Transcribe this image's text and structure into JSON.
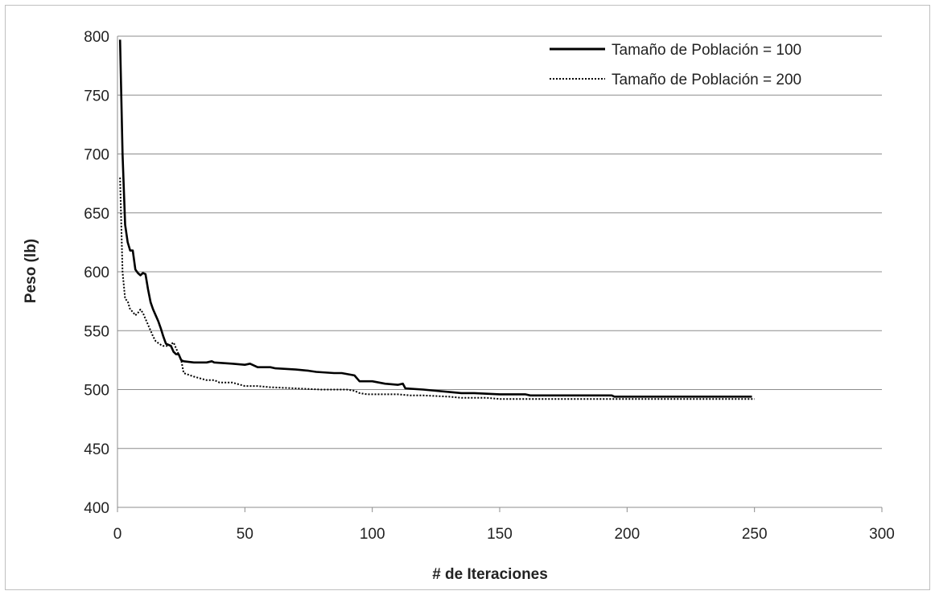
{
  "chart_data": {
    "type": "line",
    "xlabel": "# de Iteraciones",
    "ylabel": "Peso (lb)",
    "xlim": [
      0,
      300
    ],
    "ylim": [
      400,
      800
    ],
    "x_ticks": [
      0,
      50,
      100,
      150,
      200,
      250,
      300
    ],
    "y_ticks": [
      400,
      450,
      500,
      550,
      600,
      650,
      700,
      750,
      800
    ],
    "grid": "horizontal",
    "legend_position": "top-right",
    "colors": {
      "line": "#000000",
      "grid": "#8c8c8c",
      "axis": "#8c8c8c"
    },
    "series": [
      {
        "name": "Tamaño de Población = 100",
        "style": "solid",
        "points": [
          [
            1,
            797
          ],
          [
            2,
            700
          ],
          [
            3,
            640
          ],
          [
            4,
            625
          ],
          [
            5,
            618
          ],
          [
            6,
            618
          ],
          [
            7,
            602
          ],
          [
            8,
            599
          ],
          [
            9,
            597
          ],
          [
            10,
            599
          ],
          [
            11,
            598
          ],
          [
            12,
            585
          ],
          [
            13,
            574
          ],
          [
            14,
            568
          ],
          [
            15,
            563
          ],
          [
            16,
            558
          ],
          [
            17,
            552
          ],
          [
            18,
            545
          ],
          [
            19,
            539
          ],
          [
            20,
            538
          ],
          [
            21,
            537
          ],
          [
            22,
            532
          ],
          [
            23,
            530
          ],
          [
            24,
            530
          ],
          [
            25,
            525
          ],
          [
            26,
            524
          ],
          [
            30,
            523
          ],
          [
            35,
            523
          ],
          [
            37,
            524
          ],
          [
            38,
            523
          ],
          [
            45,
            522
          ],
          [
            50,
            521
          ],
          [
            52,
            522
          ],
          [
            55,
            519
          ],
          [
            60,
            519
          ],
          [
            62,
            518
          ],
          [
            70,
            517
          ],
          [
            75,
            516
          ],
          [
            78,
            515
          ],
          [
            85,
            514
          ],
          [
            88,
            514
          ],
          [
            93,
            512
          ],
          [
            95,
            507
          ],
          [
            100,
            507
          ],
          [
            105,
            505
          ],
          [
            110,
            504
          ],
          [
            112,
            505
          ],
          [
            113,
            501
          ],
          [
            120,
            500
          ],
          [
            125,
            499
          ],
          [
            130,
            498
          ],
          [
            135,
            497
          ],
          [
            140,
            497
          ],
          [
            150,
            496
          ],
          [
            160,
            496
          ],
          [
            162,
            495
          ],
          [
            170,
            495
          ],
          [
            180,
            495
          ],
          [
            194,
            495
          ],
          [
            195,
            494
          ],
          [
            210,
            494
          ],
          [
            230,
            494
          ],
          [
            249,
            494
          ]
        ]
      },
      {
        "name": "Tamaño de Población = 200",
        "style": "dotted",
        "points": [
          [
            1,
            680
          ],
          [
            2,
            600
          ],
          [
            3,
            577
          ],
          [
            4,
            575
          ],
          [
            5,
            568
          ],
          [
            6,
            566
          ],
          [
            7,
            563
          ],
          [
            8,
            565
          ],
          [
            9,
            568
          ],
          [
            10,
            565
          ],
          [
            11,
            560
          ],
          [
            12,
            555
          ],
          [
            13,
            550
          ],
          [
            14,
            545
          ],
          [
            15,
            541
          ],
          [
            17,
            538
          ],
          [
            18,
            537
          ],
          [
            20,
            537
          ],
          [
            22,
            540
          ],
          [
            23,
            535
          ],
          [
            24,
            530
          ],
          [
            25,
            525
          ],
          [
            26,
            514
          ],
          [
            30,
            511
          ],
          [
            35,
            508
          ],
          [
            38,
            508
          ],
          [
            40,
            506
          ],
          [
            45,
            506
          ],
          [
            50,
            503
          ],
          [
            55,
            503
          ],
          [
            60,
            502
          ],
          [
            70,
            501
          ],
          [
            80,
            500
          ],
          [
            90,
            500
          ],
          [
            93,
            499
          ],
          [
            95,
            497
          ],
          [
            98,
            496
          ],
          [
            110,
            496
          ],
          [
            115,
            495
          ],
          [
            120,
            495
          ],
          [
            130,
            494
          ],
          [
            135,
            493
          ],
          [
            145,
            493
          ],
          [
            150,
            492
          ],
          [
            175,
            492
          ],
          [
            200,
            492
          ],
          [
            225,
            492
          ],
          [
            250,
            492
          ]
        ]
      }
    ]
  }
}
